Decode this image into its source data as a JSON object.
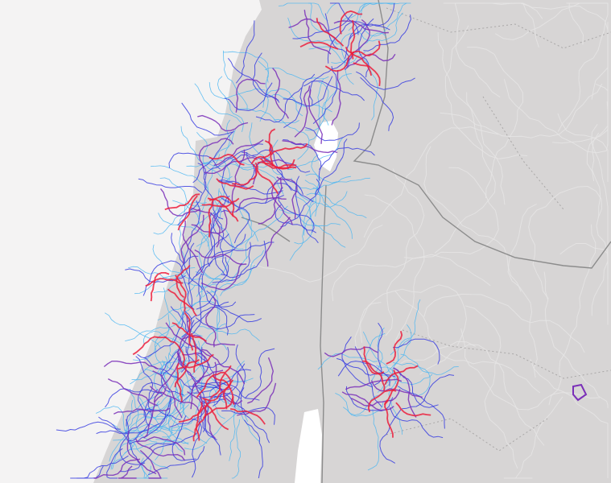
{
  "map": {
    "colors": {
      "sea": "#f4f3f3",
      "land": "#d7d5d5",
      "water": "#ffffff",
      "border": "#8c8c8c",
      "minor_border": "#a9a7a7",
      "road": "#e6e5e5",
      "route_red": "#ec1f3c",
      "route_purple": "#7a2fb8",
      "route_blue": "#3a3ee0",
      "route_light_blue": "#4ab6f2"
    }
  }
}
